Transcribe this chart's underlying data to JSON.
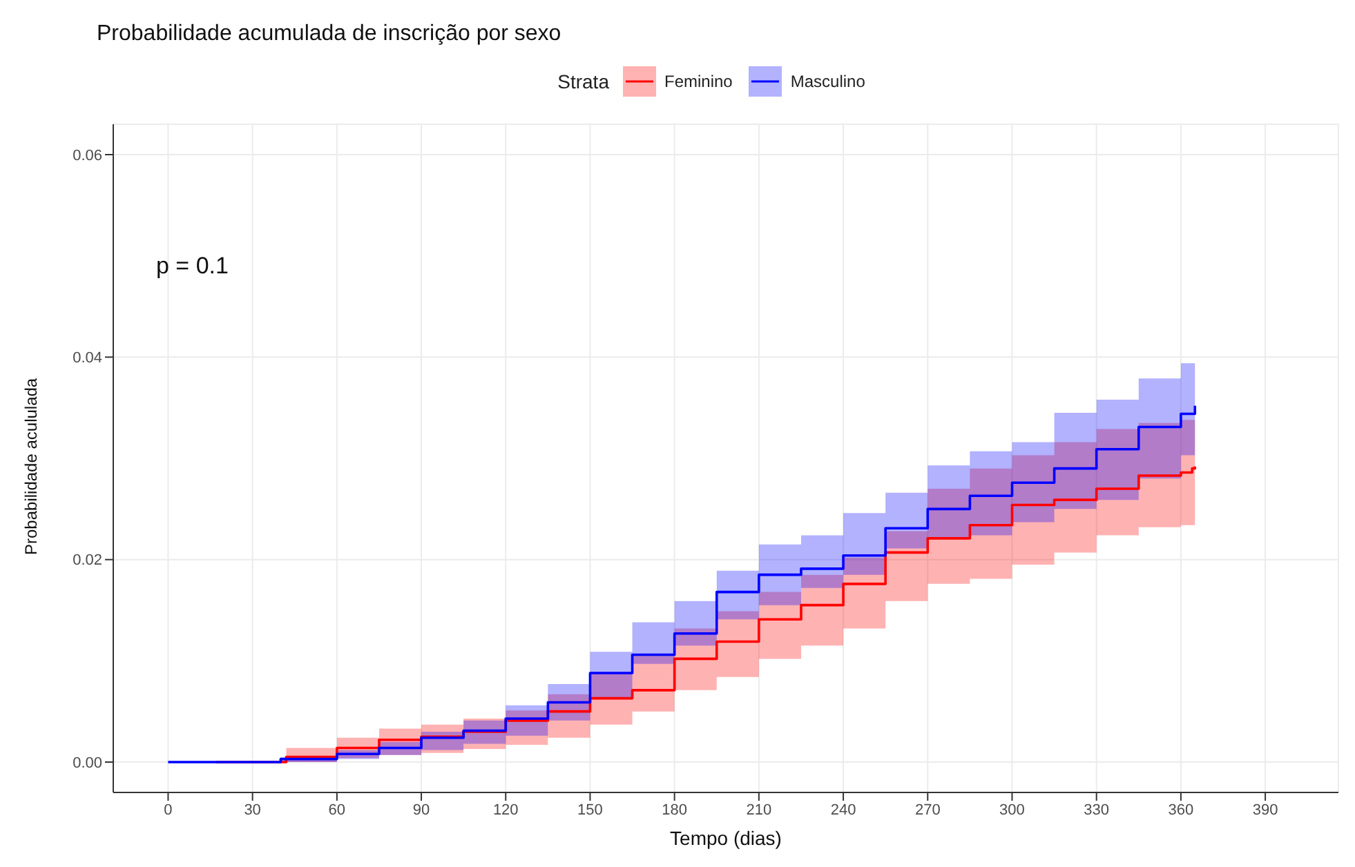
{
  "chart_data": {
    "type": "step",
    "title": "Probabilidade acumulada de inscrição por sexo",
    "xlabel": "Tempo (dias)",
    "ylabel": "Probabilidade acululada",
    "legend_title": "Strata",
    "legend": "top",
    "grid": true,
    "annotations": [
      "p = 0.1"
    ],
    "xlim": [
      -19.5,
      416
    ],
    "xticks": [
      0,
      30,
      60,
      90,
      120,
      150,
      180,
      210,
      240,
      270,
      300,
      330,
      360,
      390
    ],
    "ylim": [
      -0.003,
      0.063
    ],
    "yticks": [
      {
        "value": 0,
        "label": "0.00"
      },
      {
        "value": 0.02,
        "label": "0.02"
      },
      {
        "value": 0.04,
        "label": "0.04"
      },
      {
        "value": 0.06,
        "label": "0.06"
      }
    ],
    "series": [
      {
        "name": "Feminino",
        "color": "#ff0000",
        "x": [
          17,
          42,
          60,
          75,
          90,
          105,
          120,
          135,
          150,
          165,
          180,
          195,
          210,
          225,
          240,
          255,
          270,
          285,
          300,
          315,
          330,
          345,
          360,
          364,
          365
        ],
        "values": [
          0,
          0.0005,
          0.0014,
          0.0022,
          0.0025,
          0.003,
          0.0041,
          0.005,
          0.0063,
          0.0071,
          0.0102,
          0.0119,
          0.0141,
          0.0155,
          0.0176,
          0.0207,
          0.0221,
          0.0234,
          0.0254,
          0.0259,
          0.027,
          0.0283,
          0.0286,
          0.029,
          0.0292
        ],
        "lower": [
          0,
          0,
          0.0004,
          0.0007,
          0.0009,
          0.0013,
          0.0017,
          0.0024,
          0.0037,
          0.005,
          0.0071,
          0.0084,
          0.0102,
          0.0115,
          0.0132,
          0.0159,
          0.0176,
          0.0181,
          0.0195,
          0.0207,
          0.0224,
          0.0232,
          0.0234,
          0.0234,
          0.0234
        ],
        "upper": [
          0,
          0.0014,
          0.0024,
          0.0033,
          0.0037,
          0.0043,
          0.0051,
          0.0067,
          0.0089,
          0.0106,
          0.0132,
          0.0149,
          0.0168,
          0.0185,
          0.0202,
          0.0228,
          0.027,
          0.029,
          0.0303,
          0.0316,
          0.0329,
          0.0335,
          0.0338,
          0.0338,
          0.0338
        ]
      },
      {
        "name": "Masculino",
        "color": "#0000ff",
        "x": [
          0,
          33,
          40,
          60,
          75,
          90,
          105,
          120,
          135,
          150,
          165,
          180,
          195,
          210,
          225,
          240,
          255,
          270,
          285,
          300,
          315,
          330,
          345,
          360,
          365
        ],
        "values": [
          0,
          0,
          0.0003,
          0.0008,
          0.0014,
          0.0024,
          0.0031,
          0.0043,
          0.0059,
          0.0088,
          0.0106,
          0.0127,
          0.0168,
          0.0185,
          0.0191,
          0.0204,
          0.0231,
          0.025,
          0.0263,
          0.0276,
          0.029,
          0.0309,
          0.0331,
          0.0344,
          0.0352
        ],
        "lower": [
          0,
          0,
          0,
          0.0003,
          0.0007,
          0.0012,
          0.0018,
          0.0026,
          0.0041,
          0.0063,
          0.0097,
          0.0115,
          0.0141,
          0.0155,
          0.0172,
          0.0185,
          0.0211,
          0.022,
          0.0224,
          0.0237,
          0.025,
          0.0259,
          0.028,
          0.0303,
          0.0303
        ],
        "upper": [
          0,
          0,
          0.0005,
          0.0012,
          0.002,
          0.003,
          0.0041,
          0.0056,
          0.0077,
          0.0109,
          0.0138,
          0.0159,
          0.0189,
          0.0215,
          0.0224,
          0.0246,
          0.0266,
          0.0293,
          0.0307,
          0.0316,
          0.0345,
          0.0358,
          0.0379,
          0.0394,
          0.0398
        ]
      }
    ]
  }
}
